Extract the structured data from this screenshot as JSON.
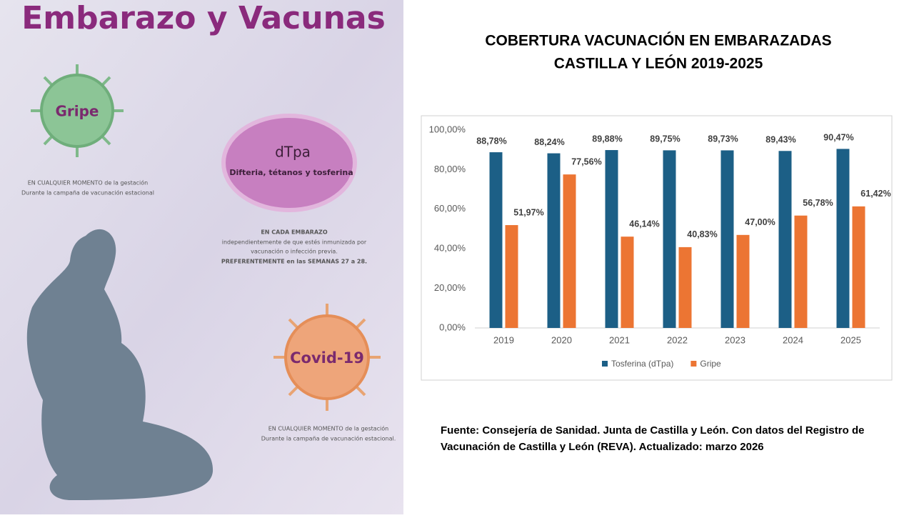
{
  "poster": {
    "title": "Embarazo y Vacunas",
    "flu": {
      "name": "Gripe",
      "line1": "EN CUALQUIER MOMENTO de la gestación",
      "line2": "Durante la campaña de vacunación estacional"
    },
    "dtpa": {
      "name": "dTpa",
      "full": "Difteria, tétanos y tosferina",
      "line1": "EN CADA EMBARAZO",
      "line2": "independientemente de que estés inmunizada por",
      "line3": "vacunación o infección previa.",
      "line4": "PREFERENTEMENTE en las SEMANAS 27 a 28."
    },
    "covid": {
      "name": "Covid-19",
      "line1": "EN CUALQUIER MOMENTO de la gestación",
      "line2": "Durante la campaña de vacunación estacional."
    }
  },
  "chart_data": {
    "type": "bar",
    "title": [
      "COBERTURA VACUNACIÓN EN EMBARAZADAS",
      "CASTILLA Y LEÓN 2019-2025"
    ],
    "categories": [
      "2019",
      "2020",
      "2021",
      "2022",
      "2023",
      "2024",
      "2025"
    ],
    "series": [
      {
        "name": "Tosferina (dTpa)",
        "color": "#1c5f86",
        "values": [
          88.78,
          88.24,
          89.88,
          89.75,
          89.73,
          89.43,
          90.47
        ],
        "value_labels": [
          "88,78%",
          "88,24%",
          "89,88%",
          "89,75%",
          "89,73%",
          "89,43%",
          "90,47%"
        ]
      },
      {
        "name": "Gripe",
        "color": "#ec7533",
        "values": [
          51.97,
          77.56,
          46.14,
          40.83,
          47.0,
          56.78,
          61.42
        ],
        "value_labels": [
          "51,97%",
          "77,56%",
          "46,14%",
          "40,83%",
          "47,00%",
          "56,78%",
          "61,42%"
        ]
      }
    ],
    "ylim": [
      0,
      100
    ],
    "yticks": [
      {
        "value": 0,
        "label": "0,00%"
      },
      {
        "value": 20,
        "label": "20,00%"
      },
      {
        "value": 40,
        "label": "40,00%"
      },
      {
        "value": 60,
        "label": "60,00%"
      },
      {
        "value": 80,
        "label": "80,00%"
      },
      {
        "value": 100,
        "label": "100,00%"
      }
    ],
    "grid": false,
    "legend": "bottom"
  },
  "source": [
    "Fuente: Consejería de Sanidad. Junta de Castilla y León. Con datos del Registro de",
    "Vacunación de Castilla y León (REVA). Actualizado: marzo 2026"
  ]
}
